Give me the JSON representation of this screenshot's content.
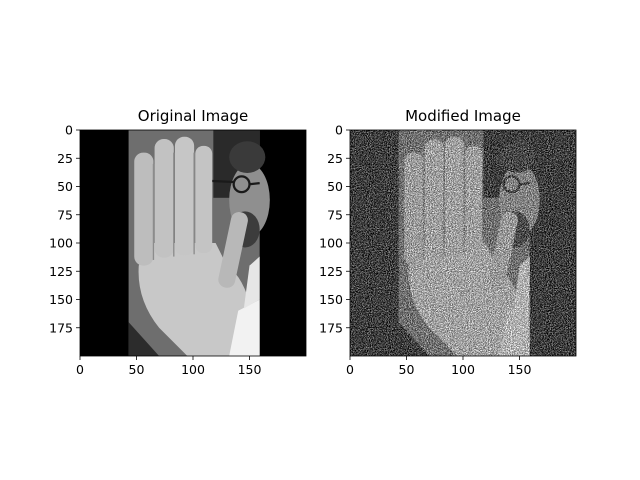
{
  "figure": {
    "background": "#ffffff",
    "colormap": "gray"
  },
  "chart_data": [
    {
      "type": "heatmap",
      "title": "Original Image",
      "image_shape": [
        200,
        200
      ],
      "xlim": [
        0,
        200
      ],
      "ylim": [
        200,
        0
      ],
      "x_ticks": [
        0,
        50,
        100,
        150
      ],
      "y_ticks": [
        0,
        25,
        50,
        75,
        100,
        125,
        150,
        175
      ],
      "y_inverted": true,
      "content": "grayscale photo of a person raising an open hand toward the camera; black borders left and right",
      "noise": false
    },
    {
      "type": "heatmap",
      "title": "Modified Image",
      "image_shape": [
        200,
        200
      ],
      "xlim": [
        0,
        200
      ],
      "ylim": [
        200,
        0
      ],
      "x_ticks": [
        0,
        50,
        100,
        150
      ],
      "y_ticks": [
        0,
        25,
        50,
        75,
        100,
        125,
        150,
        175
      ],
      "y_inverted": true,
      "content": "same photo with strong salt-and-pepper style noise and boosted contrast",
      "noise": true
    }
  ]
}
